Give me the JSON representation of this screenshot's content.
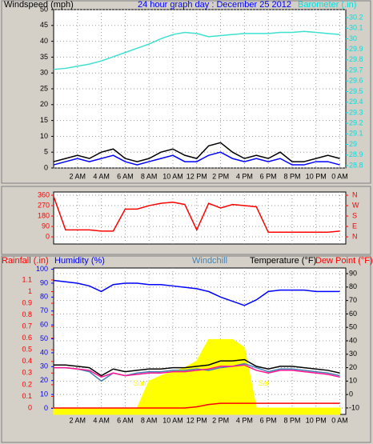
{
  "chart_data": [
    {
      "type": "line",
      "ylabel": "Windspeed (mph)",
      "title": "24 hour graph day : December 25 2012",
      "x": [
        0,
        1,
        2,
        3,
        4,
        5,
        6,
        7,
        8,
        9,
        10,
        11,
        12,
        13,
        14,
        15,
        16,
        17,
        18,
        19,
        20,
        21,
        22,
        23,
        24
      ],
      "xlim": [
        0,
        24.5
      ],
      "xticks": [
        {
          "value": 2,
          "label": "2 AM"
        },
        {
          "value": 4,
          "label": "4 AM"
        },
        {
          "value": 6,
          "label": "6 AM"
        },
        {
          "value": 8,
          "label": "8 AM"
        },
        {
          "value": 10,
          "label": "10 AM"
        },
        {
          "value": 12,
          "label": "12 PM"
        },
        {
          "value": 14,
          "label": "2 PM"
        },
        {
          "value": 16,
          "label": "4 PM"
        },
        {
          "value": 18,
          "label": "6 PM"
        },
        {
          "value": 20,
          "label": "8 PM"
        },
        {
          "value": 22,
          "label": "10 PM"
        },
        {
          "value": 24,
          "label": "0 AM"
        }
      ],
      "ylim": [
        0,
        50
      ],
      "yticks": [
        0,
        5,
        10,
        15,
        20,
        25,
        30,
        35,
        40,
        45,
        50
      ],
      "ycolor": "#000000",
      "y2lim": [
        28.777,
        30.276
      ],
      "y2ticks": [
        28.8,
        28.9,
        29,
        29.1,
        29.2,
        29.3,
        29.4,
        29.5,
        29.6,
        29.7,
        29.8,
        29.9,
        30,
        30.1,
        30.2
      ],
      "y2color": "#00e0e0",
      "grid": true,
      "series": [
        {
          "color": "#000000",
          "values": [
            2,
            3,
            4,
            3,
            5,
            6,
            3,
            2,
            3,
            5,
            6,
            4,
            3,
            7,
            8,
            5,
            3,
            4,
            3,
            5,
            2,
            2,
            3,
            4,
            3
          ]
        },
        {
          "color": "#0000ff",
          "values": [
            1,
            2,
            3,
            2,
            3,
            4,
            2,
            1,
            2,
            3,
            4,
            2,
            2,
            4,
            5,
            3,
            2,
            3,
            2,
            3,
            1,
            1,
            2,
            2,
            1
          ]
        },
        {
          "name": "Barometer (.in)",
          "color": "#40e0d0",
          "axis": "y2",
          "values": [
            29.71,
            29.72,
            29.74,
            29.76,
            29.79,
            29.83,
            29.87,
            29.91,
            29.95,
            30.0,
            30.04,
            30.06,
            30.05,
            30.02,
            30.03,
            30.04,
            30.05,
            30.05,
            30.05,
            30.06,
            30.06,
            30.07,
            30.06,
            30.05,
            30.04
          ]
        }
      ]
    },
    {
      "type": "line",
      "x": [
        0,
        1,
        2,
        3,
        4,
        5,
        6,
        7,
        8,
        9,
        10,
        11,
        12,
        13,
        14,
        15,
        16,
        17,
        18,
        19,
        20,
        21,
        22,
        23,
        24
      ],
      "xlim": [
        0,
        24.5
      ],
      "xgrid": [
        2,
        4,
        6,
        8,
        10,
        12,
        14,
        16,
        18,
        20,
        22,
        24
      ],
      "ylim": [
        -62,
        388
      ],
      "yticks": [
        0,
        90,
        180,
        270,
        360
      ],
      "ycolor": "#ff0000",
      "y2lim": [
        -62,
        388
      ],
      "y2ticks": [
        {
          "value": 360,
          "label": "N"
        },
        {
          "value": 270,
          "label": "W"
        },
        {
          "value": 180,
          "label": "S"
        },
        {
          "value": 90,
          "label": "E"
        },
        {
          "value": 0,
          "label": "N"
        }
      ],
      "y2color": "#ff0000",
      "grid": true,
      "series": [
        {
          "color": "#ff0000",
          "values": [
            350,
            60,
            60,
            60,
            50,
            50,
            240,
            240,
            270,
            290,
            300,
            280,
            60,
            290,
            250,
            280,
            270,
            260,
            40,
            40,
            40,
            40,
            40,
            40,
            50
          ]
        }
      ]
    },
    {
      "type": "line",
      "x": [
        0,
        1,
        2,
        3,
        4,
        5,
        6,
        7,
        8,
        9,
        10,
        11,
        12,
        13,
        14,
        15,
        16,
        17,
        18,
        19,
        20,
        21,
        22,
        23,
        24
      ],
      "xlim": [
        0,
        24.5
      ],
      "xticks": [
        {
          "value": 2,
          "label": "2 AM"
        },
        {
          "value": 4,
          "label": "4 AM"
        },
        {
          "value": 6,
          "label": "6 AM"
        },
        {
          "value": 8,
          "label": "8 AM"
        },
        {
          "value": 10,
          "label": "10 AM"
        },
        {
          "value": 12,
          "label": "12 PM"
        },
        {
          "value": 14,
          "label": "2 PM"
        },
        {
          "value": 16,
          "label": "4 PM"
        },
        {
          "value": 18,
          "label": "6 PM"
        },
        {
          "value": 20,
          "label": "8 PM"
        },
        {
          "value": 22,
          "label": "10 PM"
        },
        {
          "value": 24,
          "label": "0 AM"
        }
      ],
      "ylim": [
        -0.055,
        1.203
      ],
      "yticks": [
        0,
        0.1,
        0.2,
        0.3,
        0.4,
        0.5,
        0.6,
        0.7,
        0.8,
        0.9,
        1,
        1.1
      ],
      "ycolor": "#ff0000",
      "y3lim": [
        -4.3,
        100.9
      ],
      "y3ticks": [
        0,
        10,
        20,
        30,
        40,
        50,
        60,
        70,
        80,
        90,
        100
      ],
      "y3color": "#0000ff",
      "y2lim": [
        -14.8,
        94.2
      ],
      "y2ticks": [
        -10,
        0,
        10,
        20,
        30,
        40,
        50,
        60,
        70,
        80,
        90
      ],
      "y2color": "#000000",
      "grid": true,
      "grid_axis": "y2",
      "annotation_color": "#ffff00",
      "annotations": [
        {
          "text": "Sun Rise",
          "x": 7.9,
          "y": 8
        },
        {
          "text": "Set",
          "x": 17.6,
          "y": 8
        }
      ],
      "series": [
        {
          "color": "#ffff00",
          "axis": "y2",
          "fill": true,
          "values": [
            -10,
            -10,
            -10,
            -10,
            -10,
            -10,
            -10,
            -10,
            10,
            14,
            17,
            20,
            25,
            41,
            41,
            41,
            35,
            -10,
            -10,
            -10,
            -10,
            -10,
            -10,
            -10,
            -10
          ]
        },
        {
          "name": "Rainfall (.in)",
          "color": "#ff0000",
          "axis": "y",
          "values": [
            0,
            0,
            0,
            0,
            0,
            0,
            0,
            0,
            0,
            0,
            0,
            0,
            0.01,
            0.03,
            0.04,
            0.04,
            0.04,
            0.04,
            0.04,
            0.04,
            0.04,
            0.04,
            0.04,
            0.04,
            0.04
          ]
        },
        {
          "name": "Humidity (%)",
          "color": "#0000ff",
          "axis": "y3",
          "values": [
            92,
            91,
            90,
            88,
            84,
            89,
            90,
            90,
            89,
            89,
            88,
            87,
            86,
            84,
            80,
            77,
            74,
            78,
            84,
            85,
            85,
            85,
            84,
            84,
            84
          ]
        },
        {
          "name": "Windchill",
          "color": "#4682b4",
          "axis": "y2",
          "values": [
            20,
            20,
            19,
            17,
            10,
            16,
            14,
            16,
            17,
            17,
            18,
            18,
            19,
            18,
            20,
            21,
            23,
            20,
            17,
            19,
            19,
            18,
            17,
            16,
            14
          ]
        },
        {
          "name": "Temperature (°F)",
          "color": "#000000",
          "axis": "y2",
          "values": [
            22,
            22,
            21,
            20,
            14,
            19,
            17,
            18,
            19,
            19,
            20,
            20,
            21,
            22,
            25,
            25,
            26,
            21,
            19,
            21,
            21,
            20,
            19,
            18,
            16
          ]
        },
        {
          "name": "Dew Point (°F)",
          "color": "#ff1493",
          "axis": "y2",
          "values": [
            20,
            20,
            19,
            18,
            13,
            16,
            14,
            15,
            16,
            16,
            17,
            17,
            18,
            19,
            21,
            21,
            22,
            18,
            16,
            18,
            18,
            17,
            16,
            15,
            13
          ]
        }
      ]
    }
  ]
}
